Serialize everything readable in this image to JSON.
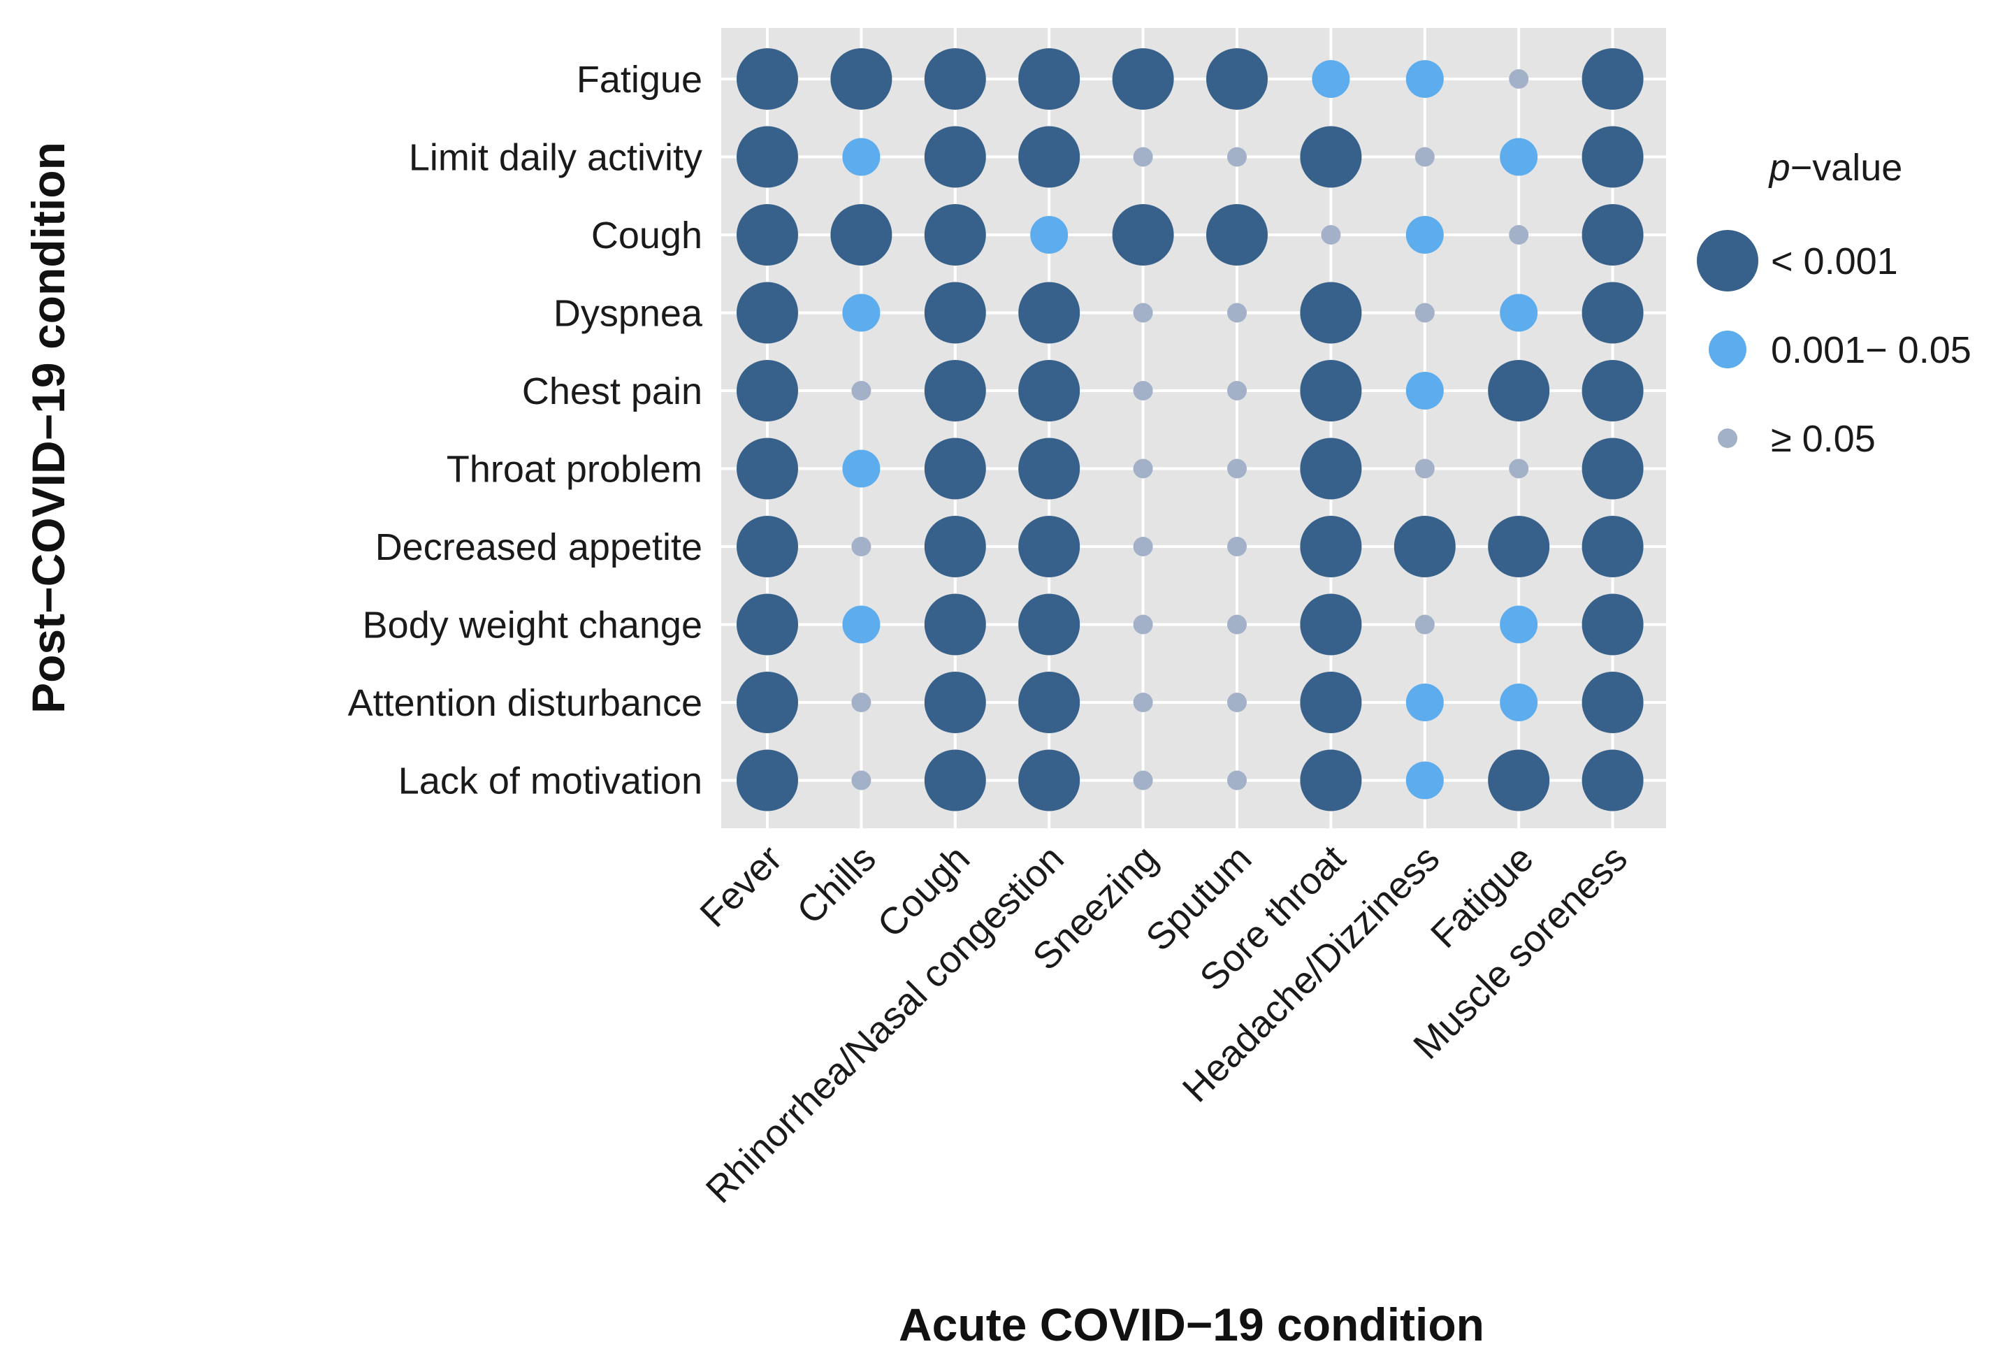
{
  "chart_data": {
    "type": "bubble-matrix",
    "xlabel": "Acute COVID−19 condition",
    "ylabel": "Post−COVID−19 condition",
    "columns": [
      "Fever",
      "Chills",
      "Cough",
      "Rhinorrhea/Nasal congestion",
      "Sneezing",
      "Sputum",
      "Sore throat",
      "Headache/Dizziness",
      "Fatigue",
      "Muscle soreness"
    ],
    "rows": [
      "Fatigue",
      "Limit daily activity",
      "Cough",
      "Dyspnea",
      "Chest pain",
      "Throat problem",
      "Decreased appetite",
      "Body weight change",
      "Attention disturbance",
      "Lack of motivation"
    ],
    "categories": [
      {
        "key": "high",
        "label": "< 0.001",
        "color": "#37618a"
      },
      {
        "key": "mid",
        "label": "0.001− 0.05",
        "color": "#5dadee"
      },
      {
        "key": "low",
        "label": "≥ 0.05",
        "color": "#a3b1c8"
      }
    ],
    "values": [
      [
        "high",
        "high",
        "high",
        "high",
        "high",
        "high",
        "mid",
        "mid",
        "low",
        "high"
      ],
      [
        "high",
        "mid",
        "high",
        "high",
        "low",
        "low",
        "high",
        "low",
        "mid",
        "high"
      ],
      [
        "high",
        "high",
        "high",
        "mid",
        "high",
        "high",
        "low",
        "mid",
        "low",
        "high"
      ],
      [
        "high",
        "mid",
        "high",
        "high",
        "low",
        "low",
        "high",
        "low",
        "mid",
        "high"
      ],
      [
        "high",
        "low",
        "high",
        "high",
        "low",
        "low",
        "high",
        "mid",
        "high",
        "high"
      ],
      [
        "high",
        "mid",
        "high",
        "high",
        "low",
        "low",
        "high",
        "low",
        "low",
        "high"
      ],
      [
        "high",
        "low",
        "high",
        "high",
        "low",
        "low",
        "high",
        "high",
        "high",
        "high"
      ],
      [
        "high",
        "mid",
        "high",
        "high",
        "low",
        "low",
        "high",
        "low",
        "mid",
        "high"
      ],
      [
        "high",
        "low",
        "high",
        "high",
        "low",
        "low",
        "high",
        "mid",
        "mid",
        "high"
      ],
      [
        "high",
        "low",
        "high",
        "high",
        "low",
        "low",
        "high",
        "mid",
        "high",
        "high"
      ]
    ],
    "legend": {
      "title_italic": "p",
      "title_rest": "−value",
      "position": "right"
    },
    "panel_background": "#e4e4e4",
    "grid_color": "#ffffff"
  }
}
